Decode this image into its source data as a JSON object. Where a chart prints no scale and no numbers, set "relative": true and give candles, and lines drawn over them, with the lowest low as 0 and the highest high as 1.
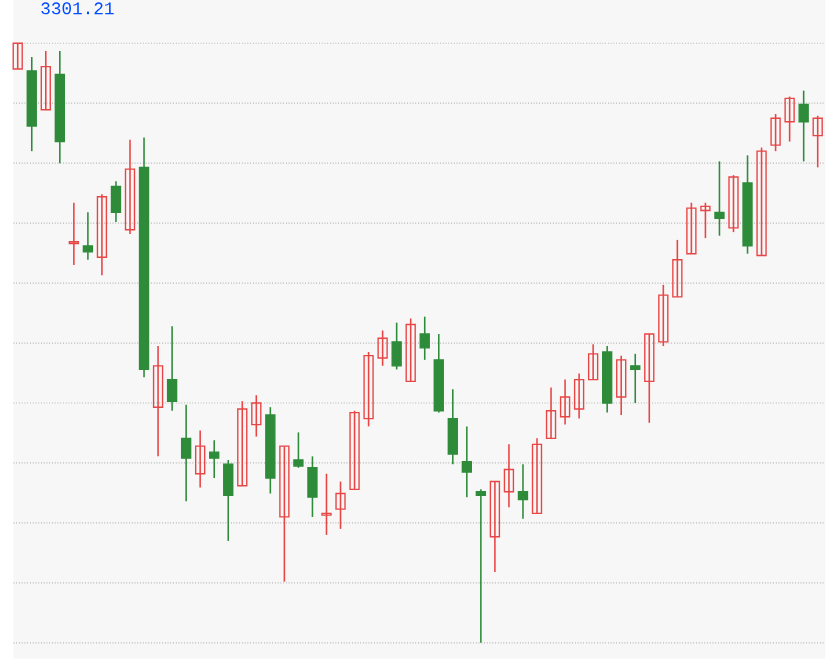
{
  "chart_data": {
    "type": "candlestick",
    "relative": true,
    "grid": "y",
    "tick_labels": false,
    "annotations": [
      "3301.21"
    ],
    "categories": [
      null,
      null,
      null,
      null,
      null,
      null,
      null,
      null,
      null,
      null,
      null,
      null,
      null,
      null,
      null,
      null,
      null,
      null,
      null,
      null,
      null,
      null,
      null,
      null,
      null,
      null,
      null,
      null,
      null,
      null,
      null,
      null,
      null,
      null,
      null,
      null,
      null,
      null,
      null,
      null,
      null,
      null,
      null,
      null,
      null,
      null,
      null,
      null,
      null,
      null,
      null,
      null,
      null,
      null,
      null,
      null,
      null,
      null
    ],
    "ohlc": [
      [
        0.957,
        1.0,
        0.957,
        1.0
      ],
      [
        0.954,
        0.977,
        0.82,
        0.862
      ],
      [
        0.889,
        0.987,
        0.889,
        0.961
      ],
      [
        0.948,
        0.987,
        0.8,
        0.836
      ],
      [
        0.666,
        0.734,
        0.63,
        0.669
      ],
      [
        0.662,
        0.718,
        0.639,
        0.652
      ],
      [
        0.643,
        0.748,
        0.613,
        0.744
      ],
      [
        0.761,
        0.77,
        0.702,
        0.718
      ],
      [
        0.689,
        0.839,
        0.682,
        0.79
      ],
      [
        0.793,
        0.843,
        0.443,
        0.456
      ],
      [
        0.393,
        0.495,
        0.311,
        0.462
      ],
      [
        0.439,
        0.528,
        0.387,
        0.403
      ],
      [
        0.341,
        0.397,
        0.236,
        0.308
      ],
      [
        0.282,
        0.354,
        0.259,
        0.328
      ],
      [
        0.318,
        0.338,
        0.275,
        0.308
      ],
      [
        0.298,
        0.305,
        0.17,
        0.246
      ],
      [
        0.262,
        0.403,
        0.262,
        0.39
      ],
      [
        0.364,
        0.413,
        0.344,
        0.4
      ],
      [
        0.38,
        0.393,
        0.249,
        0.275
      ],
      [
        0.21,
        0.328,
        0.102,
        0.328
      ],
      [
        0.305,
        0.351,
        0.292,
        0.295
      ],
      [
        0.292,
        0.311,
        0.21,
        0.243
      ],
      [
        0.213,
        0.282,
        0.18,
        0.216
      ],
      [
        0.223,
        0.269,
        0.19,
        0.249
      ],
      [
        0.256,
        0.387,
        0.256,
        0.384
      ],
      [
        0.374,
        0.485,
        0.361,
        0.479
      ],
      [
        0.475,
        0.521,
        0.462,
        0.508
      ],
      [
        0.502,
        0.534,
        0.456,
        0.462
      ],
      [
        0.436,
        0.541,
        0.436,
        0.531
      ],
      [
        0.515,
        0.544,
        0.472,
        0.492
      ],
      [
        0.472,
        0.515,
        0.384,
        0.387
      ],
      [
        0.374,
        0.423,
        0.298,
        0.315
      ],
      [
        0.302,
        0.361,
        0.243,
        0.285
      ],
      [
        0.252,
        0.256,
        0.0,
        0.246
      ],
      [
        0.177,
        0.269,
        0.118,
        0.269
      ],
      [
        0.252,
        0.331,
        0.226,
        0.289
      ],
      [
        0.252,
        0.298,
        0.207,
        0.239
      ],
      [
        0.216,
        0.341,
        0.216,
        0.331
      ],
      [
        0.341,
        0.426,
        0.341,
        0.387
      ],
      [
        0.377,
        0.439,
        0.364,
        0.41
      ],
      [
        0.39,
        0.449,
        0.374,
        0.439
      ],
      [
        0.439,
        0.498,
        0.439,
        0.482
      ],
      [
        0.485,
        0.495,
        0.384,
        0.4
      ],
      [
        0.41,
        0.479,
        0.38,
        0.472
      ],
      [
        0.462,
        0.482,
        0.4,
        0.456
      ],
      [
        0.436,
        0.515,
        0.367,
        0.515
      ],
      [
        0.502,
        0.597,
        0.495,
        0.58
      ],
      [
        0.577,
        0.672,
        0.577,
        0.639
      ],
      [
        0.649,
        0.734,
        0.649,
        0.725
      ],
      [
        0.721,
        0.734,
        0.675,
        0.728
      ],
      [
        0.718,
        0.803,
        0.679,
        0.708
      ],
      [
        0.692,
        0.78,
        0.685,
        0.777
      ],
      [
        0.767,
        0.813,
        0.649,
        0.662
      ],
      [
        0.646,
        0.826,
        0.646,
        0.82
      ],
      [
        0.83,
        0.882,
        0.82,
        0.875
      ],
      [
        0.869,
        0.911,
        0.836,
        0.908
      ],
      [
        0.898,
        0.921,
        0.803,
        0.869
      ],
      [
        0.846,
        0.879,
        0.793,
        0.875
      ]
    ],
    "colors": [
      "#e84545",
      "#2e8b3a",
      "#e84545",
      "#2e8b3a",
      "#e84545",
      "#2e8b3a",
      "#e84545",
      "#2e8b3a",
      "#e84545",
      "#2e8b3a",
      "#e84545",
      "#2e8b3a",
      "#2e8b3a",
      "#e84545",
      "#2e8b3a",
      "#2e8b3a",
      "#e84545",
      "#e84545",
      "#2e8b3a",
      "#e84545",
      "#2e8b3a",
      "#2e8b3a",
      "#e84545",
      "#e84545",
      "#e84545",
      "#e84545",
      "#e84545",
      "#2e8b3a",
      "#e84545",
      "#2e8b3a",
      "#2e8b3a",
      "#2e8b3a",
      "#2e8b3a",
      "#2e8b3a",
      "#e84545",
      "#e84545",
      "#2e8b3a",
      "#e84545",
      "#e84545",
      "#e84545",
      "#e84545",
      "#e84545",
      "#2e8b3a",
      "#e84545",
      "#2e8b3a",
      "#e84545",
      "#e84545",
      "#e84545",
      "#e84545",
      "#e84545",
      "#2e8b3a",
      "#e84545",
      "#2e8b3a",
      "#e84545",
      "#e84545",
      "#e84545",
      "#2e8b3a",
      "#e84545"
    ]
  }
}
